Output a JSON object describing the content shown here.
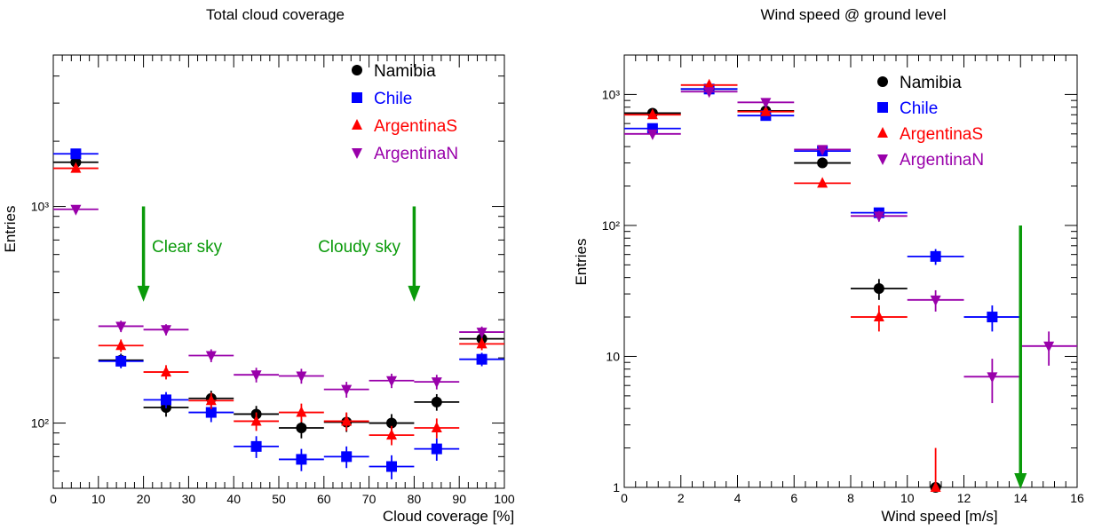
{
  "chart_data": [
    {
      "type": "scatter",
      "title": "Total cloud coverage",
      "xlabel": "Cloud coverage [%]",
      "ylabel": "Entries",
      "xlim": [
        0,
        100
      ],
      "ylim": [
        50,
        5000
      ],
      "yscale": "log",
      "xticks": [
        0,
        10,
        20,
        30,
        40,
        50,
        60,
        70,
        80,
        90,
        100
      ],
      "xtick_labels": [
        "0",
        "10",
        "20",
        "30",
        "40",
        "50",
        "60",
        "70",
        "80",
        "90",
        "100"
      ],
      "ytick_labels": [
        "10²",
        "10³"
      ],
      "legend_position": "top-right",
      "annotations": [
        {
          "text": "Clear sky",
          "x": 20,
          "arrow_from": 1000,
          "arrow_to": 370
        },
        {
          "text": "Cloudy sky",
          "x": 80,
          "arrow_from": 1000,
          "arrow_to": 370
        }
      ],
      "series": [
        {
          "name": "Namibia",
          "color": "#000000",
          "marker": "circle",
          "points": [
            {
              "x": 5,
              "y": 1600,
              "xerr": 5,
              "yerr": 40
            },
            {
              "x": 15,
              "y": 195,
              "xerr": 5,
              "yerr": 14
            },
            {
              "x": 25,
              "y": 118,
              "xerr": 5,
              "yerr": 11
            },
            {
              "x": 35,
              "y": 130,
              "xerr": 5,
              "yerr": 11
            },
            {
              "x": 45,
              "y": 110,
              "xerr": 5,
              "yerr": 10
            },
            {
              "x": 55,
              "y": 95,
              "xerr": 5,
              "yerr": 10
            },
            {
              "x": 65,
              "y": 101,
              "xerr": 5,
              "yerr": 10
            },
            {
              "x": 75,
              "y": 100,
              "xerr": 5,
              "yerr": 10
            },
            {
              "x": 85,
              "y": 125,
              "xerr": 5,
              "yerr": 11
            },
            {
              "x": 95,
              "y": 245,
              "xerr": 5,
              "yerr": 16
            }
          ]
        },
        {
          "name": "Chile",
          "color": "#0000ff",
          "marker": "square",
          "points": [
            {
              "x": 5,
              "y": 1750,
              "xerr": 5,
              "yerr": 42
            },
            {
              "x": 15,
              "y": 193,
              "xerr": 5,
              "yerr": 14
            },
            {
              "x": 25,
              "y": 128,
              "xerr": 5,
              "yerr": 11
            },
            {
              "x": 35,
              "y": 112,
              "xerr": 5,
              "yerr": 11
            },
            {
              "x": 45,
              "y": 78,
              "xerr": 5,
              "yerr": 9
            },
            {
              "x": 55,
              "y": 68,
              "xerr": 5,
              "yerr": 8
            },
            {
              "x": 65,
              "y": 70,
              "xerr": 5,
              "yerr": 8
            },
            {
              "x": 75,
              "y": 63,
              "xerr": 5,
              "yerr": 8
            },
            {
              "x": 85,
              "y": 76,
              "xerr": 5,
              "yerr": 9
            },
            {
              "x": 95,
              "y": 197,
              "xerr": 5,
              "yerr": 14
            }
          ]
        },
        {
          "name": "ArgentinaS",
          "color": "#ff0000",
          "marker": "triangle-up",
          "points": [
            {
              "x": 5,
              "y": 1500,
              "xerr": 5,
              "yerr": 39
            },
            {
              "x": 15,
              "y": 228,
              "xerr": 5,
              "yerr": 15
            },
            {
              "x": 25,
              "y": 172,
              "xerr": 5,
              "yerr": 13
            },
            {
              "x": 35,
              "y": 127,
              "xerr": 5,
              "yerr": 11
            },
            {
              "x": 45,
              "y": 102,
              "xerr": 5,
              "yerr": 10
            },
            {
              "x": 55,
              "y": 112,
              "xerr": 5,
              "yerr": 11
            },
            {
              "x": 65,
              "y": 102,
              "xerr": 5,
              "yerr": 10
            },
            {
              "x": 75,
              "y": 88,
              "xerr": 5,
              "yerr": 9
            },
            {
              "x": 85,
              "y": 95,
              "xerr": 5,
              "yerr": 10
            },
            {
              "x": 95,
              "y": 232,
              "xerr": 5,
              "yerr": 15
            }
          ]
        },
        {
          "name": "ArgentinaN",
          "color": "#9900aa",
          "marker": "triangle-down",
          "points": [
            {
              "x": 5,
              "y": 970,
              "xerr": 5,
              "yerr": 31
            },
            {
              "x": 15,
              "y": 280,
              "xerr": 5,
              "yerr": 17
            },
            {
              "x": 25,
              "y": 270,
              "xerr": 5,
              "yerr": 16
            },
            {
              "x": 35,
              "y": 205,
              "xerr": 5,
              "yerr": 14
            },
            {
              "x": 45,
              "y": 167,
              "xerr": 5,
              "yerr": 13
            },
            {
              "x": 55,
              "y": 165,
              "xerr": 5,
              "yerr": 13
            },
            {
              "x": 65,
              "y": 143,
              "xerr": 5,
              "yerr": 12
            },
            {
              "x": 75,
              "y": 157,
              "xerr": 5,
              "yerr": 12
            },
            {
              "x": 85,
              "y": 155,
              "xerr": 5,
              "yerr": 12
            },
            {
              "x": 95,
              "y": 263,
              "xerr": 5,
              "yerr": 16
            }
          ]
        }
      ]
    },
    {
      "type": "scatter",
      "title": "Wind speed @ ground level",
      "xlabel": "Wind speed [m/s]",
      "ylabel": "Entries",
      "xlim": [
        0,
        16
      ],
      "ylim": [
        1,
        2000
      ],
      "yscale": "log",
      "xticks": [
        0,
        2,
        4,
        6,
        8,
        10,
        12,
        14,
        16
      ],
      "xtick_labels": [
        "0",
        "2",
        "4",
        "6",
        "8",
        "10",
        "12",
        "14",
        "16"
      ],
      "ytick_labels": [
        "1",
        "10",
        "10²",
        "10³"
      ],
      "legend_position": "top-right",
      "annotations": [
        {
          "text": "",
          "x": 14,
          "arrow_from": 100,
          "arrow_to": 1
        }
      ],
      "series": [
        {
          "name": "Namibia",
          "color": "#000000",
          "marker": "circle",
          "points": [
            {
              "x": 1,
              "y": 720,
              "xerr": 1,
              "yerr": 27
            },
            {
              "x": 3,
              "y": 1100,
              "xerr": 1,
              "yerr": 33
            },
            {
              "x": 5,
              "y": 750,
              "xerr": 1,
              "yerr": 27
            },
            {
              "x": 7,
              "y": 300,
              "xerr": 1,
              "yerr": 17
            },
            {
              "x": 9,
              "y": 33,
              "xerr": 1,
              "yerr": 6
            },
            {
              "x": 11,
              "y": 1,
              "xerr": 0,
              "yerr": 0
            }
          ]
        },
        {
          "name": "Chile",
          "color": "#0000ff",
          "marker": "square",
          "points": [
            {
              "x": 1,
              "y": 550,
              "xerr": 1,
              "yerr": 23
            },
            {
              "x": 3,
              "y": 1100,
              "xerr": 1,
              "yerr": 33
            },
            {
              "x": 5,
              "y": 690,
              "xerr": 1,
              "yerr": 26
            },
            {
              "x": 7,
              "y": 370,
              "xerr": 1,
              "yerr": 19
            },
            {
              "x": 9,
              "y": 125,
              "xerr": 1,
              "yerr": 11
            },
            {
              "x": 11,
              "y": 58,
              "xerr": 1,
              "yerr": 8
            },
            {
              "x": 13,
              "y": 20,
              "xerr": 1,
              "yerr": 4.5
            }
          ]
        },
        {
          "name": "ArgentinaS",
          "color": "#ff0000",
          "marker": "triangle-up",
          "points": [
            {
              "x": 1,
              "y": 700,
              "xerr": 1,
              "yerr": 26
            },
            {
              "x": 3,
              "y": 1180,
              "xerr": 1,
              "yerr": 34
            },
            {
              "x": 5,
              "y": 740,
              "xerr": 1,
              "yerr": 27
            },
            {
              "x": 7,
              "y": 210,
              "xerr": 1,
              "yerr": 14
            },
            {
              "x": 9,
              "y": 20,
              "xerr": 1,
              "yerr": 4.5
            },
            {
              "x": 11,
              "y": 1,
              "xerr": 0,
              "yerr": 1
            }
          ]
        },
        {
          "name": "ArgentinaN",
          "color": "#9900aa",
          "marker": "triangle-down",
          "points": [
            {
              "x": 1,
              "y": 500,
              "xerr": 1,
              "yerr": 22
            },
            {
              "x": 3,
              "y": 1050,
              "xerr": 1,
              "yerr": 32
            },
            {
              "x": 5,
              "y": 870,
              "xerr": 1,
              "yerr": 29
            },
            {
              "x": 7,
              "y": 380,
              "xerr": 1,
              "yerr": 19
            },
            {
              "x": 9,
              "y": 118,
              "xerr": 1,
              "yerr": 11
            },
            {
              "x": 11,
              "y": 27,
              "xerr": 1,
              "yerr": 5
            },
            {
              "x": 13,
              "y": 7,
              "xerr": 1,
              "yerr": 2.6
            },
            {
              "x": 15,
              "y": 12,
              "xerr": 1,
              "yerr": 3.5
            }
          ]
        }
      ]
    }
  ]
}
